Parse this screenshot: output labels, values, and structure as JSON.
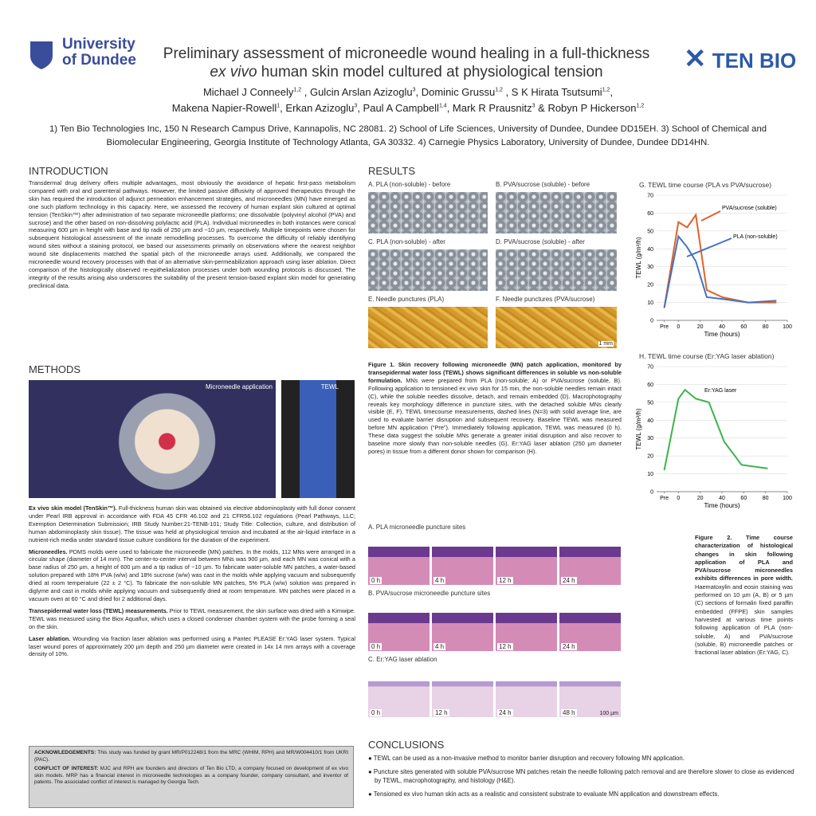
{
  "header": {
    "university_line1": "University",
    "university_line2": "of Dundee",
    "company": "TEN BIO",
    "title_line1": "Preliminary assessment of microneedle wound healing in a full-thickness",
    "title_italic": "ex vivo",
    "title_rest": " human skin model cultured at physiological tension",
    "authors_line1": [
      {
        "name": "Michael J Conneely",
        "sup": "1,2",
        "after": " , "
      },
      {
        "name": "Gulcin Arslan Azizoglu",
        "sup": "3",
        "after": ", "
      },
      {
        "name": "Dominic Grussu",
        "sup": "1,2",
        "after": " , "
      },
      {
        "name": "S K Hirata Tsutsumi",
        "sup": "1,2",
        "after": ","
      }
    ],
    "authors_line2": [
      {
        "name": "Makena Napier-Rowell",
        "sup": "1",
        "after": ", "
      },
      {
        "name": "Erkan Azizoglu",
        "sup": "3",
        "after": ", "
      },
      {
        "name": "Paul A Campbell",
        "sup": "1,4",
        "after": ", "
      },
      {
        "name": "Mark R Prausnitz",
        "sup": "3",
        "after": " & "
      },
      {
        "name": "Robyn P Hickerson",
        "sup": "1,2",
        "after": ""
      }
    ],
    "affiliations": "1) Ten Bio Technologies Inc, 150 N Research Campus Drive, Kannapolis, NC 28081. 2) School of Life Sciences, University of Dundee, Dundee DD15EH. 3) School of Chemical and Biomolecular Engineering, Georgia Institute of Technology Atlanta, GA 30332. 4) Carnegie Physics Laboratory, University of Dundee, Dundee DD14HN."
  },
  "introduction": {
    "heading": "INTRODUCTION",
    "text": "Transdermal drug delivery offers multiple advantages, most obviously the avoidance of hepatic first-pass metabolism compared with oral and parenteral pathways. However, the limited passive diffusivity of approved therapeutics through the skin has required the introduction of adjunct permeation enhancement strategies, and microneedles (MN) have emerged as one such platform technology in this capacity. Here, we assessed the recovery of human explant skin cultured at optimal tension (TenSkin™) after administration of two separate microneedle platforms; one dissolvable (polyvinyl alcohol (PVA) and sucrose) and the other based on non-dissolving polylactic acid (PLA). Individual microneedles in both instances were conical measuring 600 µm in height with base and tip radii of 250 µm and ~10 µm, respectively. Multiple timepoints were chosen for subsequent histological assessment of the innate remodelling processes. To overcome the difficulty of reliably identifying wound sites without a staining protocol, we based our assessments primarily on observations where the nearest neighbor wound site displacements matched the spatial pitch of the microneedle arrays used. Additionally, we compared the microneedle wound recovery processes with that of an alternative skin-permeabilization approach using laser ablation. Direct comparison of the histologically observed re-epithelialization processes under both wounding protocols is discussed. The integrity of the results arising also underscores the suitability of the present tension-based explant skin model for generating preclinical data."
  },
  "methods": {
    "heading": "METHODS",
    "photo_label_1": "Microneedle application",
    "photo_label_2": "TEWL",
    "paragraphs": [
      {
        "lead": "Ex vivo skin model (TenSkin™).",
        "text": " Full-thickness human skin was obtained via elective abdominoplasty with full donor consent under Pearl IRB approval in accordance with FDA 45 CFR 46.102 and 21 CFR56.102 regulations (Pearl Pathways, LLC; Exemption Determination Submission; IRB Study Number:21-TENB-101; Study Title: Collection, culture, and distribution of human abdominoplasty skin tissue). The tissue was held at physiological tension and incubated at the air-liquid interface in a nutrient-rich media under standard tissue culture conditions for the duration of the experiment."
      },
      {
        "lead": "Microneedles.",
        "text": " PDMS molds were used to fabricate the microneedle (MN) patches. In the molds, 112 MNs were arranged in a circular shape (diameter of 14 mm). The center-to-center interval between MNs was 900 µm, and each MN was conical with a base radius of 250 µm, a height of 600 µm and a tip radius of ~10 µm. To fabricate water-soluble MN patches, a water-based solution prepared with 18% PVA (w/w) and 18% sucrose (w/w) was cast in the molds while applying vacuum and subsequently dried at room temperature (22 ± 2 °C). To fabricate the non-soluble MN patches, 5% PLA (w/w) solution was prepared in diglyme and cast in molds while applying vacuum and subsequently dried at room temperature. MN patches were placed in a vacuum oven at 60 °C and dried for 2 additional days."
      },
      {
        "lead": "Transepidermal water loss (TEWL) measurements.",
        "text": " Prior to TEWL measurement, the skin surface was dried with a Kimwipe. TEWL was measured using the Biox Aquaflux, which uses a closed condenser chamber system with the probe forming a seal on the skin."
      },
      {
        "lead": "Laser ablation.",
        "text": " Wounding via fraction laser ablation was performed using a Pantec PLEASE Er:YAG laser system. Typical laser wound pores of approximately 200 µm depth and 250 µm diameter were created in 14x 14 mm arrays with a coverage density of 10%."
      }
    ]
  },
  "acknowledgements": {
    "lead": "ACKNOWLEDGEMENTS:",
    "text": " This study was funded by grant MR/P012248/1 from the MRC (WHIM, RPH) and MR/W004410/1 from UKRI (PAC).",
    "coi_lead": "CONFLICT OF INTEREST:",
    "coi_text": " MJC and RPH are founders and directors of Ten Bio LTD, a company focused on development of ex vivo skin models. MRP has a financial interest in microneedle technologies as a company founder, company consultant, and inventor of patents. The associated conflict of interest is managed by Georgia Tech."
  },
  "results": {
    "heading": "RESULTS",
    "panels": [
      "A. PLA (non-soluble) - before",
      "B. PVA/sucrose (soluble) - before",
      "C. PLA (non-soluble) - after",
      "D. PVA/sucrose (soluble) - after",
      "E. Needle punctures (PLA)",
      "F. Needle punctures (PVA/sucrose)"
    ],
    "scale": "1 mm",
    "figure1_lead": "Figure 1. Skin recovery following microneedle (MN) patch application, monitored by transepidermal water loss (TEWL) shows significant differences in soluble vs non-soluble formulation.",
    "figure1_text": " MNs were prepared from PLA (non-soluble; A) or PVA/sucrose (soluble, B). Following application to tensioned ex vivo skin for 15 min, the non-soluble needles remain intact (C), while the soluble needles dissolve, detach, and remain embedded (D). Macrophotography reveals key morphology difference in puncture sites, with the detached soluble MNs clearly visible (E, F). TEWL timecourse measurements, dashed lines (N=3) with solid average line, are used to evaluate barrier disruption and subsequent recovery. Baseline TEWL was measured before MN application (“Pre”). Immediately following application, TEWL was measured (0 h). These data suggest the soluble MNs generate a greater initial disruption and also recover to baseline more slowly than non-soluble needles (G). Er:YAG laser ablation (250 µm diameter pores) in tissue from a different donor shown for comparison (H)."
  },
  "chart_data": [
    {
      "type": "line",
      "title": "G. TEWL time course (PLA vs PVA/sucrose)",
      "xlabel": "Time (hours)",
      "ylabel": "TEWL (g/m²/h)",
      "xlim": [
        -20,
        100
      ],
      "ylim": [
        0,
        70
      ],
      "xticks": [
        {
          "value": -13,
          "label": "Pre"
        },
        0,
        20,
        40,
        60,
        80,
        100
      ],
      "yticks": [
        0,
        10,
        20,
        30,
        40,
        50,
        60,
        70
      ],
      "series": [
        {
          "name": "PVA/sucrose (soluble)",
          "color": "#e0622a",
          "x": [
            -13,
            0,
            8,
            16,
            26,
            40,
            64,
            90
          ],
          "values": [
            7,
            55,
            52,
            59,
            17,
            13,
            10,
            10
          ]
        },
        {
          "name": "PLA (non-soluble)",
          "color": "#4472c4",
          "x": [
            -13,
            0,
            8,
            16,
            26,
            40,
            64,
            90
          ],
          "values": [
            7,
            47,
            41,
            33,
            13,
            12,
            10,
            11
          ]
        }
      ]
    },
    {
      "type": "line",
      "title": "H. TEWL time course (Er:YAG laser ablation)",
      "xlabel": "Time (hours)",
      "ylabel": "TEWL (g/m²/h)",
      "xlim": [
        -20,
        100
      ],
      "ylim": [
        0,
        70
      ],
      "xticks": [
        {
          "value": -13,
          "label": "Pre"
        },
        0,
        20,
        40,
        60,
        80,
        100
      ],
      "yticks": [
        0,
        10,
        20,
        30,
        40,
        50,
        60,
        70
      ],
      "series": [
        {
          "name": "Er:YAG laser",
          "color": "#3cb44b",
          "x": [
            -13,
            0,
            6,
            16,
            28,
            42,
            58,
            82
          ],
          "values": [
            12,
            52,
            57,
            52,
            50,
            28,
            15,
            13
          ]
        }
      ]
    }
  ],
  "figure2": {
    "rows": [
      {
        "label": "A. PLA microneedle puncture sites",
        "times": [
          "0 h",
          "4 h",
          "12 h",
          "24 h"
        ]
      },
      {
        "label": "B. PVA/sucrose microneedle puncture sites",
        "times": [
          "0 h",
          "4 h",
          "12 h",
          "24 h"
        ]
      },
      {
        "label": "C. Er:YAG laser ablation",
        "times": [
          "0 h",
          "12 h",
          "24 h",
          "48 h"
        ]
      }
    ],
    "scale": "100 µm",
    "caption_lead": "Figure 2. Time course characterization of histological changes in skin following application of PLA and PVA/sucrose microneedles exhibits differences in pore width.",
    "caption_text": " Haematoxylin and eosin staining was performed on 10 µm (A, B) or 5 µm (C) sections of formalin fixed paraffin embedded (FFPE) skin samples harvested at various time points following application of PLA (non-soluble, A) and PVA/sucrose (soluble, B) microneedle patches or fractional laser ablation (Er:YAG, C)."
  },
  "conclusions": {
    "heading": "CONCLUSIONS",
    "bullets": [
      "TEWL can be used as a non-invasive method to monitor barrier disruption and recovery following MN application.",
      "Puncture sites generated with soluble PVA/sucrose MN patches retain the needle following patch removal and are therefore slower to close as evidenced by TEWL, macrophotography, and histology (H&E).",
      "Tensioned ex vivo human skin acts as a realistic and consistent substrate to evaluate MN application and downstream effects."
    ]
  }
}
